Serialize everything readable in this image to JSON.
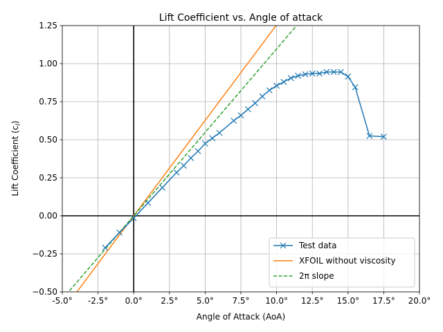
{
  "chart_data": {
    "type": "line",
    "title": "Lift Coefficient vs. Angle of attack",
    "xlabel": "Angle of Attack (AoA)",
    "ylabel": "Lift Coefficient (c",
    "ylabel_sub": "l",
    "ylabel_close": ")",
    "xlim": [
      -5,
      20
    ],
    "ylim": [
      -0.5,
      1.25
    ],
    "x_ticks": [
      -5,
      -2.5,
      0,
      2.5,
      5,
      7.5,
      10,
      12.5,
      15,
      17.5,
      20
    ],
    "x_tick_labels": [
      "-5.0°",
      "-2.5°",
      "0.0°",
      "2.5°",
      "5.0°",
      "7.5°",
      "10.0°",
      "12.5°",
      "15.0°",
      "17.5°",
      "20.0°"
    ],
    "y_ticks": [
      -0.5,
      -0.25,
      0,
      0.25,
      0.5,
      0.75,
      1.0,
      1.25
    ],
    "y_tick_labels": [
      "−0.50",
      "−0.25",
      "0.00",
      "0.25",
      "0.50",
      "0.75",
      "1.00",
      "1.25"
    ],
    "grid": true,
    "legend_position": "bottom-right",
    "series": [
      {
        "name": "Test data",
        "style": "solid-x-markers",
        "color": "#1f77b4",
        "x": [
          -2,
          -1,
          0,
          1,
          2,
          3,
          3.5,
          4,
          4.5,
          5,
          5.5,
          6,
          7,
          7.5,
          8,
          8.5,
          9,
          9.5,
          10,
          10.5,
          11,
          11.5,
          12,
          12.5,
          13,
          13.5,
          14,
          14.5,
          15,
          15.5,
          16.5,
          17.5
        ],
        "y": [
          -0.21,
          -0.11,
          -0.015,
          0.085,
          0.185,
          0.285,
          0.33,
          0.38,
          0.425,
          0.475,
          0.51,
          0.545,
          0.625,
          0.66,
          0.7,
          0.74,
          0.785,
          0.825,
          0.855,
          0.88,
          0.905,
          0.92,
          0.93,
          0.935,
          0.935,
          0.945,
          0.945,
          0.945,
          0.915,
          0.845,
          0.525,
          0.52
        ]
      },
      {
        "name": "XFOIL without viscosity",
        "style": "solid",
        "color": "#ff7f0e",
        "x": [
          -5,
          20
        ],
        "y": [
          -0.628,
          2.51
        ]
      },
      {
        "name": "2π slope",
        "style": "dashed",
        "color": "#2ca02c",
        "x": [
          -5,
          20
        ],
        "y": [
          -0.548,
          2.193
        ]
      }
    ],
    "legend_labels": [
      "Test data",
      "XFOIL without viscosity",
      "2π slope"
    ]
  }
}
